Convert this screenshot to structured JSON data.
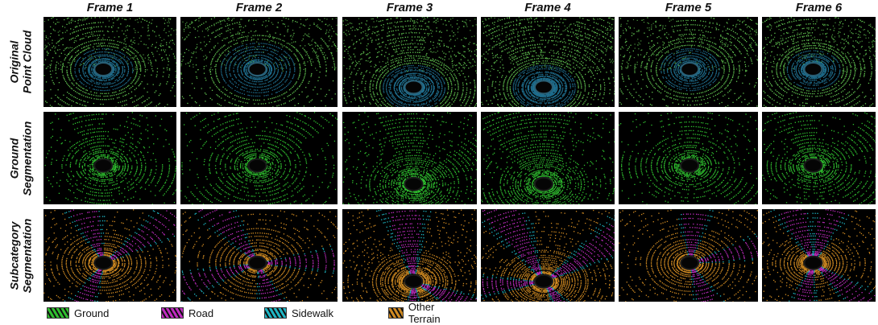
{
  "columns": [
    "Frame 1",
    "Frame 2",
    "Frame 3",
    "Frame 4",
    "Frame 5",
    "Frame 6"
  ],
  "rows": [
    {
      "label": "Original\nPoint Cloud",
      "style": "original"
    },
    {
      "label": "Ground\nSegmentation",
      "style": "ground"
    },
    {
      "label": "Subcategory\nSegmentation",
      "style": "subcategory"
    }
  ],
  "legend": [
    {
      "label": "Ground",
      "color": "#2fbf2f"
    },
    {
      "label": "Road",
      "color": "#c02cc0"
    },
    {
      "label": "Sidewalk",
      "color": "#1fb6c4"
    },
    {
      "label": "Other Terrain",
      "color": "#d08a22"
    }
  ],
  "colors": {
    "panel_background": "#000000",
    "original_point_near": "#1f6f8f",
    "original_point_far": "#5fc04f",
    "ground": "#2fbf2f",
    "road": "#c02cc0",
    "sidewalk": "#1fb6c4",
    "other_terrain": "#d08a22"
  }
}
